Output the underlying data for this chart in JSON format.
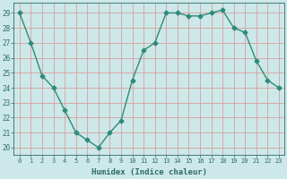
{
  "x": [
    0,
    1,
    2,
    3,
    4,
    5,
    6,
    7,
    8,
    9,
    10,
    11,
    12,
    13,
    14,
    15,
    16,
    17,
    18,
    19,
    20,
    21,
    22,
    23
  ],
  "y": [
    29,
    27,
    24.8,
    24,
    22.5,
    21,
    20.5,
    20,
    21,
    21.8,
    24.5,
    26.5,
    27,
    29,
    29,
    28.8,
    28.8,
    29,
    29.2,
    28,
    27.7,
    25.8,
    24.5,
    24
  ],
  "line_color": "#2e8b7a",
  "marker": "D",
  "marker_size": 2.5,
  "bg_color": "#cce8e8",
  "plot_bg_color": "#cce8e8",
  "grid_color": "#d8a0a0",
  "xlabel": "Humidex (Indice chaleur)",
  "ylabel_ticks": [
    20,
    21,
    22,
    23,
    24,
    25,
    26,
    27,
    28,
    29
  ],
  "xlim": [
    -0.5,
    23.5
  ],
  "ylim": [
    19.5,
    29.7
  ],
  "tick_color": "#2e6b6b",
  "label_color": "#2e6b6b"
}
